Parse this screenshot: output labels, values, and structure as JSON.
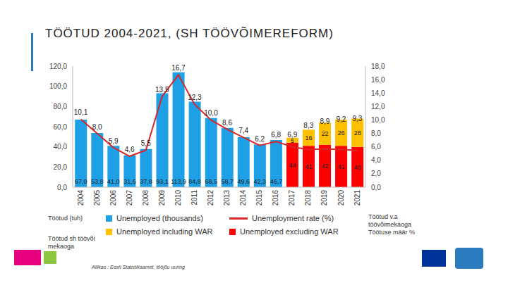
{
  "title": "TÖÖTUD 2004-2021, (SH TÖÖVÕIMEREFORM)",
  "notes_left": [
    "Töötud (tuh)",
    "Töötud sh töövõimekaoga"
  ],
  "notes_right": [
    "Töötud v.a töövõimekaoga",
    "Töötuse määr %"
  ],
  "source": "Allikas : Eesti Statistikaamet, tööjõu uuring",
  "chart_data": {
    "type": "bar",
    "stacked": true,
    "grid": false,
    "data_labels": true,
    "categories": [
      "2004",
      "2005",
      "2006",
      "2007",
      "2008",
      "2009",
      "2010",
      "2011",
      "2012",
      "2013",
      "2014",
      "2015",
      "2016",
      "2017",
      "2018",
      "2019",
      "2020",
      "2021"
    ],
    "ylim": [
      0,
      120
    ],
    "yticks": [
      {
        "value": 0,
        "label": "0,0"
      },
      {
        "value": 20,
        "label": "20,0"
      },
      {
        "value": 40,
        "label": "40,0"
      },
      {
        "value": 60,
        "label": "60,0"
      },
      {
        "value": 80,
        "label": "80,0"
      },
      {
        "value": 100,
        "label": "100,0"
      },
      {
        "value": 120,
        "label": "120,0"
      }
    ],
    "y2lim": [
      0,
      18
    ],
    "y2ticks": [
      {
        "value": 0,
        "label": "0,0"
      },
      {
        "value": 2,
        "label": "2,0"
      },
      {
        "value": 4,
        "label": "4,0"
      },
      {
        "value": 6,
        "label": "6,0"
      },
      {
        "value": 8,
        "label": "8,0"
      },
      {
        "value": 10,
        "label": "10,0"
      },
      {
        "value": 12,
        "label": "12,0"
      },
      {
        "value": 14,
        "label": "14,0"
      },
      {
        "value": 16,
        "label": "16,0"
      },
      {
        "value": 18,
        "label": "18,0"
      }
    ],
    "series": [
      {
        "name": "Unemployed (thousands)",
        "type": "bar",
        "color": "#1ea0e6",
        "values": [
          67.0,
          53.8,
          41.0,
          31.6,
          37.8,
          93.1,
          113.9,
          84.8,
          68.5,
          58.7,
          49.6,
          42.3,
          46.7,
          null,
          null,
          null,
          null,
          null
        ],
        "value_labels": [
          "67,0",
          "53,8",
          "41,0",
          "31,6",
          "37,8",
          "93,1",
          "113,9",
          "84,8",
          "68,5",
          "58,7",
          "49,6",
          "42,3",
          "46,7",
          null,
          null,
          null,
          null,
          null
        ]
      },
      {
        "name": "Unemployed excluding WAR",
        "type": "bar",
        "color": "#ff0000",
        "values": [
          null,
          null,
          null,
          null,
          null,
          null,
          null,
          null,
          null,
          null,
          null,
          null,
          null,
          44,
          41,
          42,
          41,
          40
        ]
      },
      {
        "name": "Unemployed including WAR",
        "type": "bar",
        "color": "#ffc000",
        "values": [
          null,
          null,
          null,
          null,
          null,
          null,
          null,
          null,
          null,
          null,
          null,
          null,
          null,
          5,
          16,
          22,
          26,
          28
        ]
      },
      {
        "name": "Unemployment rate (%)",
        "type": "line",
        "axis": "y2",
        "color": "#d9262b",
        "values": [
          10.1,
          8.0,
          5.9,
          4.6,
          5.5,
          13.5,
          16.7,
          12.3,
          10.0,
          8.6,
          7.4,
          6.2,
          6.8,
          6.0,
          5.6,
          5.7,
          5.6,
          5.5
        ],
        "value_labels": [
          "10,1",
          "8,0",
          "5,9",
          "4,6",
          "5,5",
          "13,5",
          "16,7",
          "12,3",
          "10,0",
          "8,6",
          "7,4",
          "6,2",
          "6,8",
          null,
          null,
          null,
          null,
          null
        ]
      }
    ],
    "annotations": [
      {
        "x": "2017",
        "y": 6.9,
        "axis": "y2",
        "text": "6,9"
      },
      {
        "x": "2018",
        "y": 8.3,
        "axis": "y2",
        "text": "8,3"
      },
      {
        "x": "2019",
        "y": 8.9,
        "axis": "y2",
        "text": "8,9"
      },
      {
        "x": "2020",
        "y": 9.2,
        "axis": "y2",
        "text": "9,2"
      },
      {
        "x": "2021",
        "y": 9.3,
        "axis": "y2",
        "text": "9,3"
      }
    ]
  }
}
